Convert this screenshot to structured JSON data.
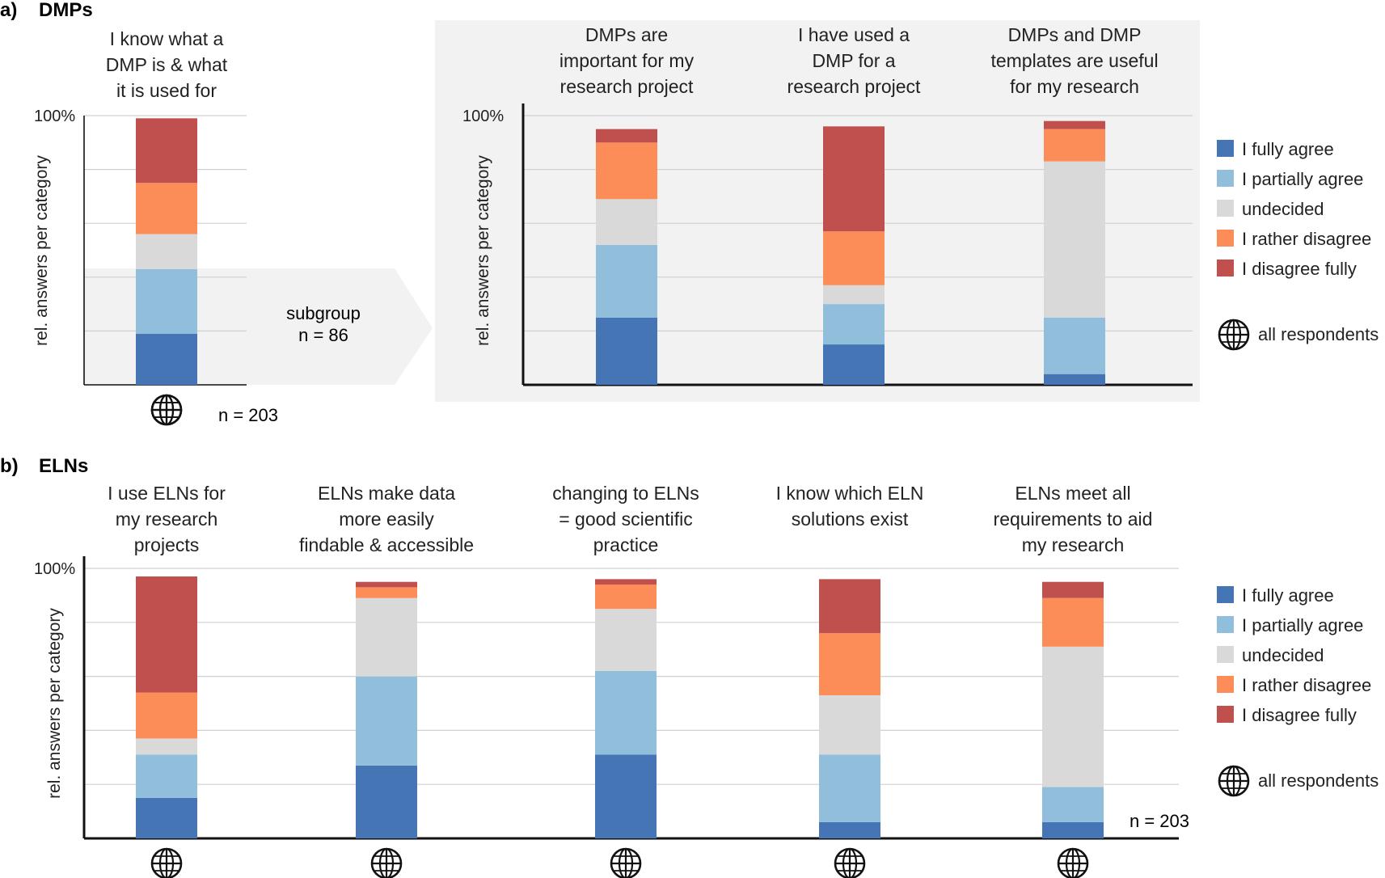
{
  "colors": {
    "fully_agree": "#4575b4",
    "partially_agree": "#91bfdb",
    "undecided": "#d9d9d9",
    "rather_disagree": "#fc8d59",
    "disagree_fully": "#c0504d",
    "panel_bg": "#f2f2f2",
    "grid": "#d0d0d0",
    "axis": "#111111"
  },
  "icon": "globe-icon",
  "legend_labels": [
    "I fully agree",
    "I partially agree",
    "undecided",
    "I rather disagree",
    "I disagree fully"
  ],
  "legend_icon_label": "all respondents",
  "panel_a": {
    "label": "a)",
    "title": "DMPs",
    "n_label": "n = 203",
    "subgroup": {
      "line1": "subgroup",
      "line2": "n = 86"
    }
  },
  "panel_b": {
    "label": "b)",
    "title": "ELNs",
    "n_label": "n = 203"
  },
  "chart_data": [
    {
      "type": "bar",
      "stacked": true,
      "panel": "a",
      "group": "all respondents",
      "categories": [
        [
          "I know what a",
          "DMP is & what",
          "it is used for"
        ]
      ],
      "ylabel": "rel. answers per category",
      "y_tick_label": "100%",
      "ylim": [
        0,
        100
      ],
      "grid": true,
      "series": [
        {
          "name": "I fully agree",
          "values": [
            19
          ]
        },
        {
          "name": "I partially agree",
          "values": [
            24
          ]
        },
        {
          "name": "undecided",
          "values": [
            13
          ]
        },
        {
          "name": "I rather disagree",
          "values": [
            19
          ]
        },
        {
          "name": "I disagree fully",
          "values": [
            24
          ]
        }
      ]
    },
    {
      "type": "bar",
      "stacked": true,
      "panel": "a",
      "group": "subgroup",
      "categories": [
        [
          "DMPs are",
          "important for my",
          "research project"
        ],
        [
          "I have used a",
          "DMP for a",
          "research project"
        ],
        [
          "DMPs and DMP",
          "templates are useful",
          "for my research"
        ]
      ],
      "ylabel": "rel. answers per category",
      "y_tick_label": "100%",
      "ylim": [
        0,
        100
      ],
      "grid": true,
      "series": [
        {
          "name": "I fully agree",
          "values": [
            25,
            15,
            4
          ]
        },
        {
          "name": "I partially agree",
          "values": [
            27,
            15,
            21
          ]
        },
        {
          "name": "undecided",
          "values": [
            17,
            7,
            58
          ]
        },
        {
          "name": "I rather disagree",
          "values": [
            21,
            20,
            12
          ]
        },
        {
          "name": "I disagree fully",
          "values": [
            5,
            39,
            3
          ]
        }
      ]
    },
    {
      "type": "bar",
      "stacked": true,
      "panel": "b",
      "group": "all respondents",
      "categories": [
        [
          "I use ELNs for",
          "my research",
          "projects"
        ],
        [
          "ELNs make data",
          "more easily",
          "findable & accessible"
        ],
        [
          "changing to ELNs",
          "= good scientific",
          "practice"
        ],
        [
          "I know which ELN",
          "solutions exist"
        ],
        [
          "ELNs meet all",
          "requirements to aid",
          "my research"
        ]
      ],
      "ylabel": "rel. answers per category",
      "y_tick_label": "100%",
      "ylim": [
        0,
        100
      ],
      "grid": true,
      "series": [
        {
          "name": "I fully agree",
          "values": [
            15,
            27,
            31,
            6,
            6
          ]
        },
        {
          "name": "I partially agree",
          "values": [
            16,
            33,
            31,
            25,
            13
          ]
        },
        {
          "name": "undecided",
          "values": [
            6,
            29,
            23,
            22,
            52
          ]
        },
        {
          "name": "I rather disagree",
          "values": [
            17,
            4,
            9,
            23,
            18
          ]
        },
        {
          "name": "I disagree fully",
          "values": [
            43,
            2,
            2,
            20,
            6
          ]
        }
      ]
    }
  ]
}
